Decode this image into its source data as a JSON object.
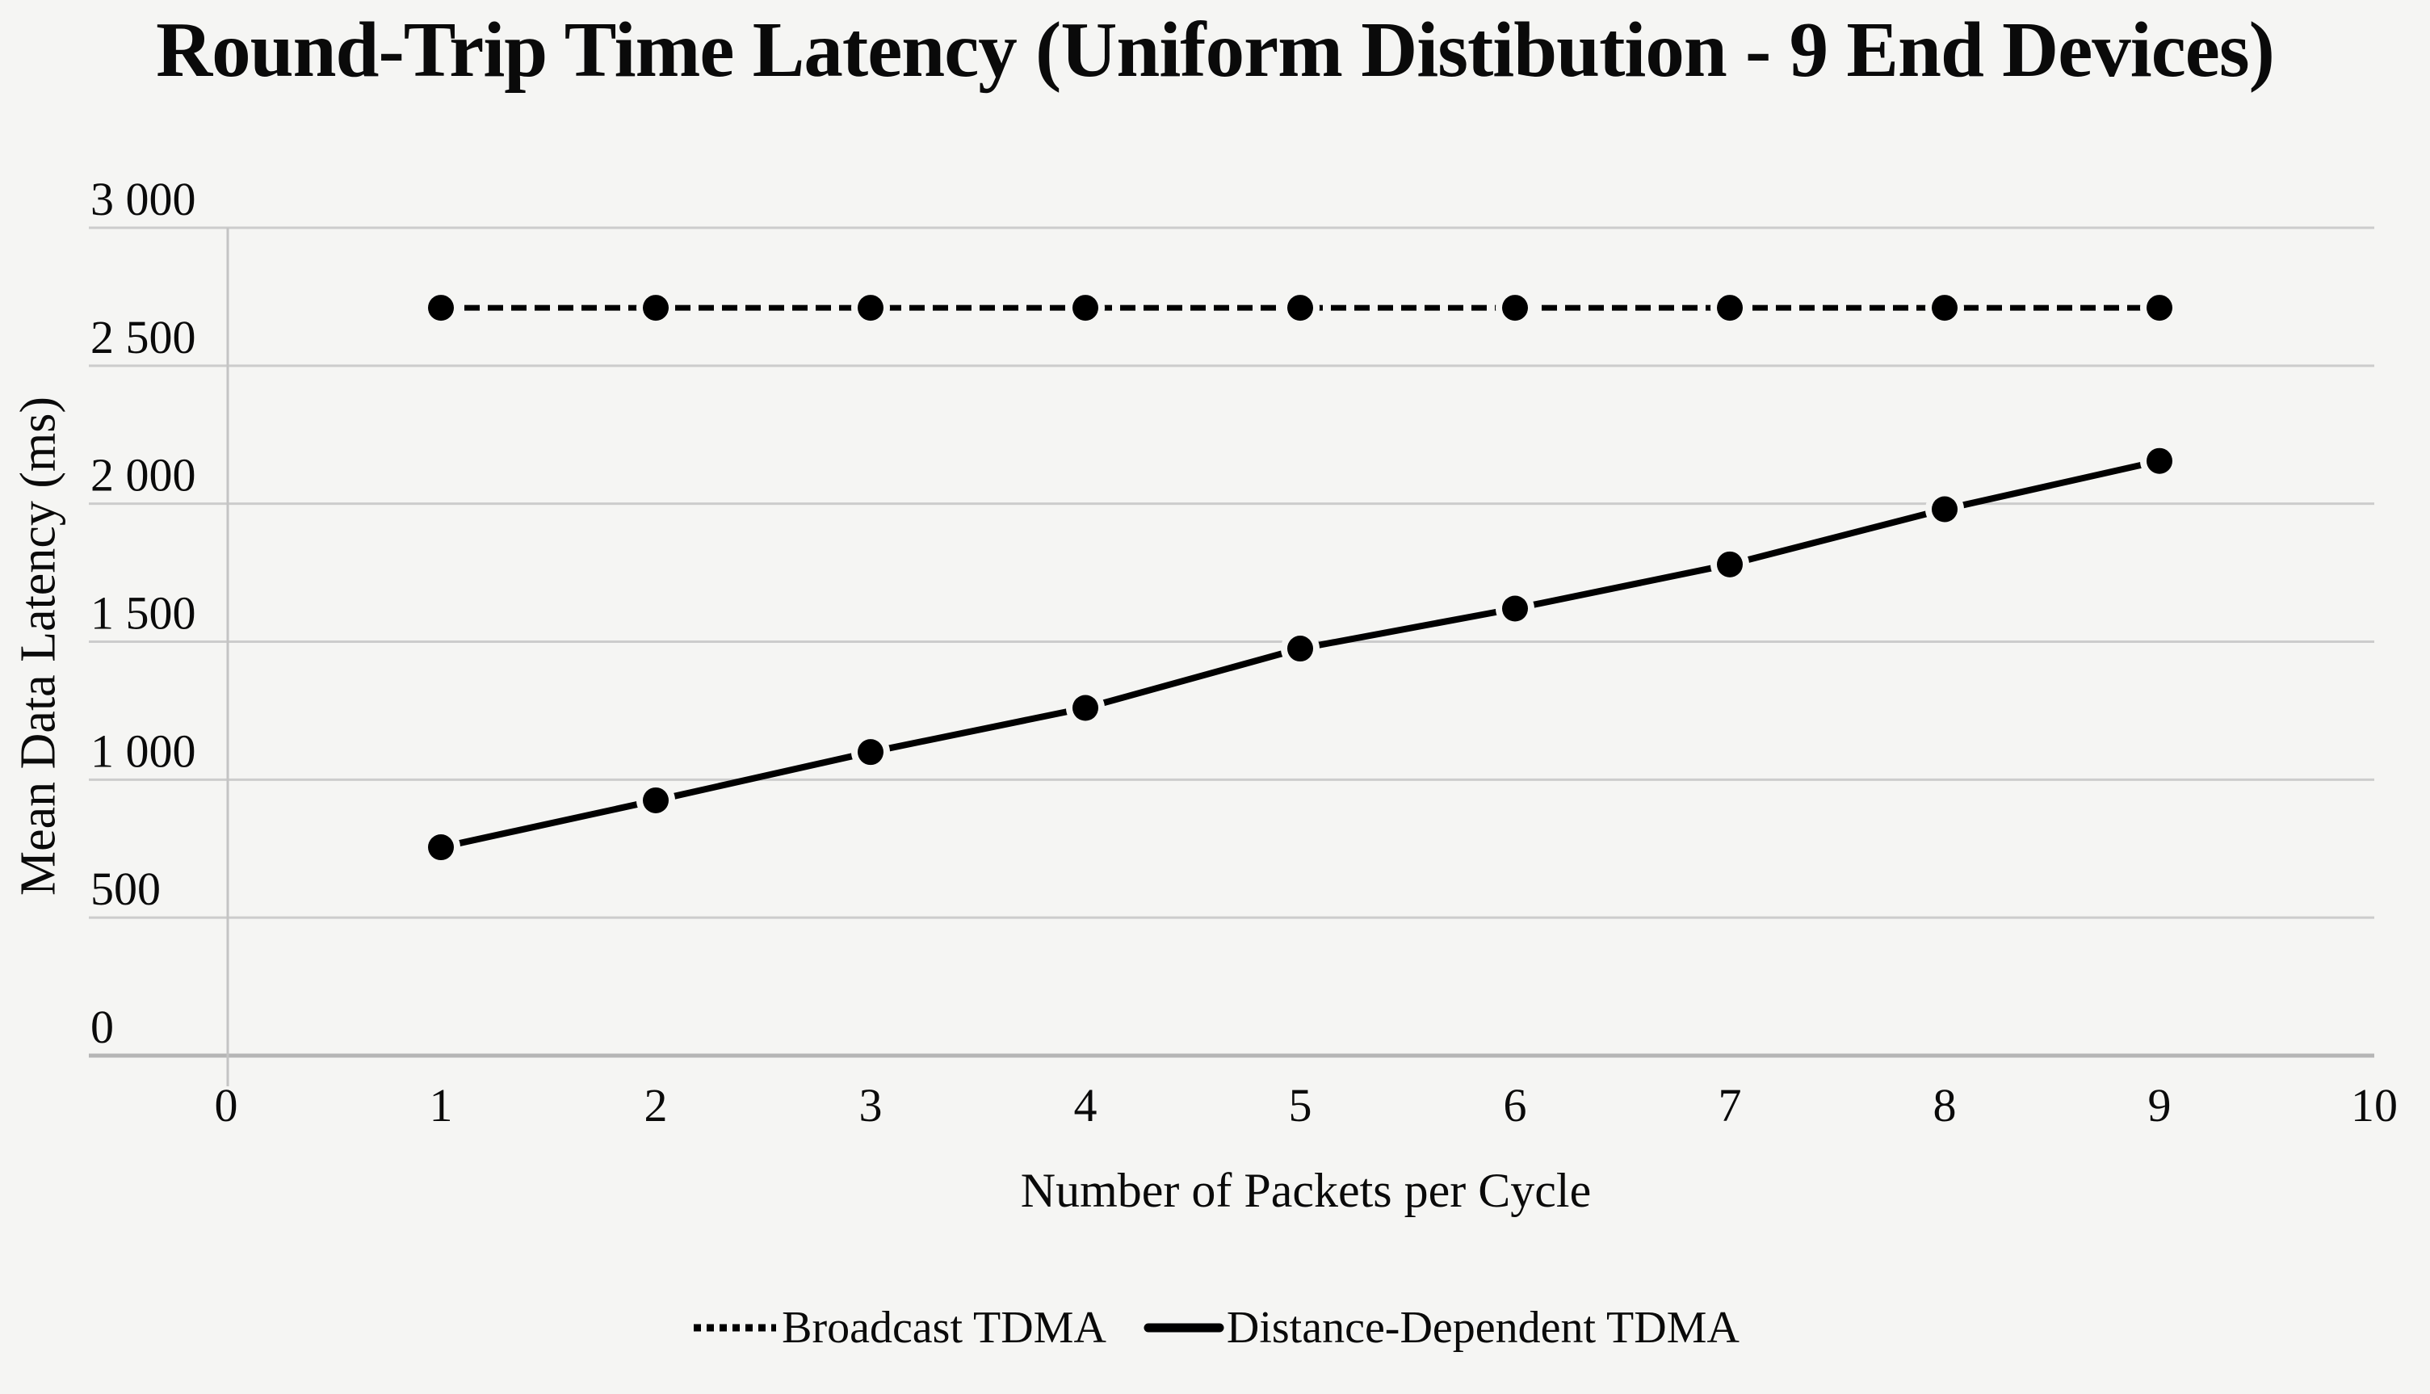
{
  "chart_data": {
    "type": "line",
    "title": "Round-Trip Time Latency (Uniform Distibution - 9 End Devices)",
    "xlabel": "Number of Packets per Cycle",
    "ylabel": "Mean Data Latency (ms)",
    "x": [
      1,
      2,
      3,
      4,
      5,
      6,
      7,
      8,
      9
    ],
    "series": [
      {
        "name": "Broadcast TDMA",
        "style": "dashed",
        "values": [
          2710,
          2710,
          2710,
          2710,
          2710,
          2710,
          2710,
          2710,
          2710
        ]
      },
      {
        "name": "Distance-Dependent TDMA",
        "style": "solid",
        "values": [
          755,
          925,
          1100,
          1260,
          1475,
          1620,
          1780,
          1980,
          2155
        ]
      }
    ],
    "xlim": [
      0,
      10
    ],
    "ylim": [
      0,
      3000
    ],
    "ytick_step": 500,
    "x_tick_labels": [
      "0",
      "1",
      "2",
      "3",
      "4",
      "5",
      "6",
      "7",
      "8",
      "9",
      "10"
    ],
    "y_tick_labels": [
      "0",
      "500",
      "1 000",
      "1 500",
      "2 000",
      "2 500",
      "3 000"
    ],
    "grid": true,
    "legend_position": "bottom",
    "marker": "filled-circle",
    "colors": {
      "series": "#000000",
      "gridline": "#cccccc",
      "x_axis_line": "#b5b5b5",
      "y_axis_line": "#c4c4c4",
      "background": "#f5f5f3",
      "text": "#0a0a0a"
    }
  }
}
